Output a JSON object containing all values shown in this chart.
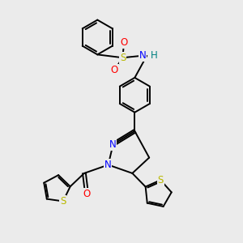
{
  "background_color": "#ebebeb",
  "bond_color": "#000000",
  "bond_width": 1.4,
  "atom_colors": {
    "N": "#0000ff",
    "O": "#ff0000",
    "S": "#b8b800",
    "H": "#008080",
    "C": "#000000"
  },
  "font_size_atom": 8.5
}
